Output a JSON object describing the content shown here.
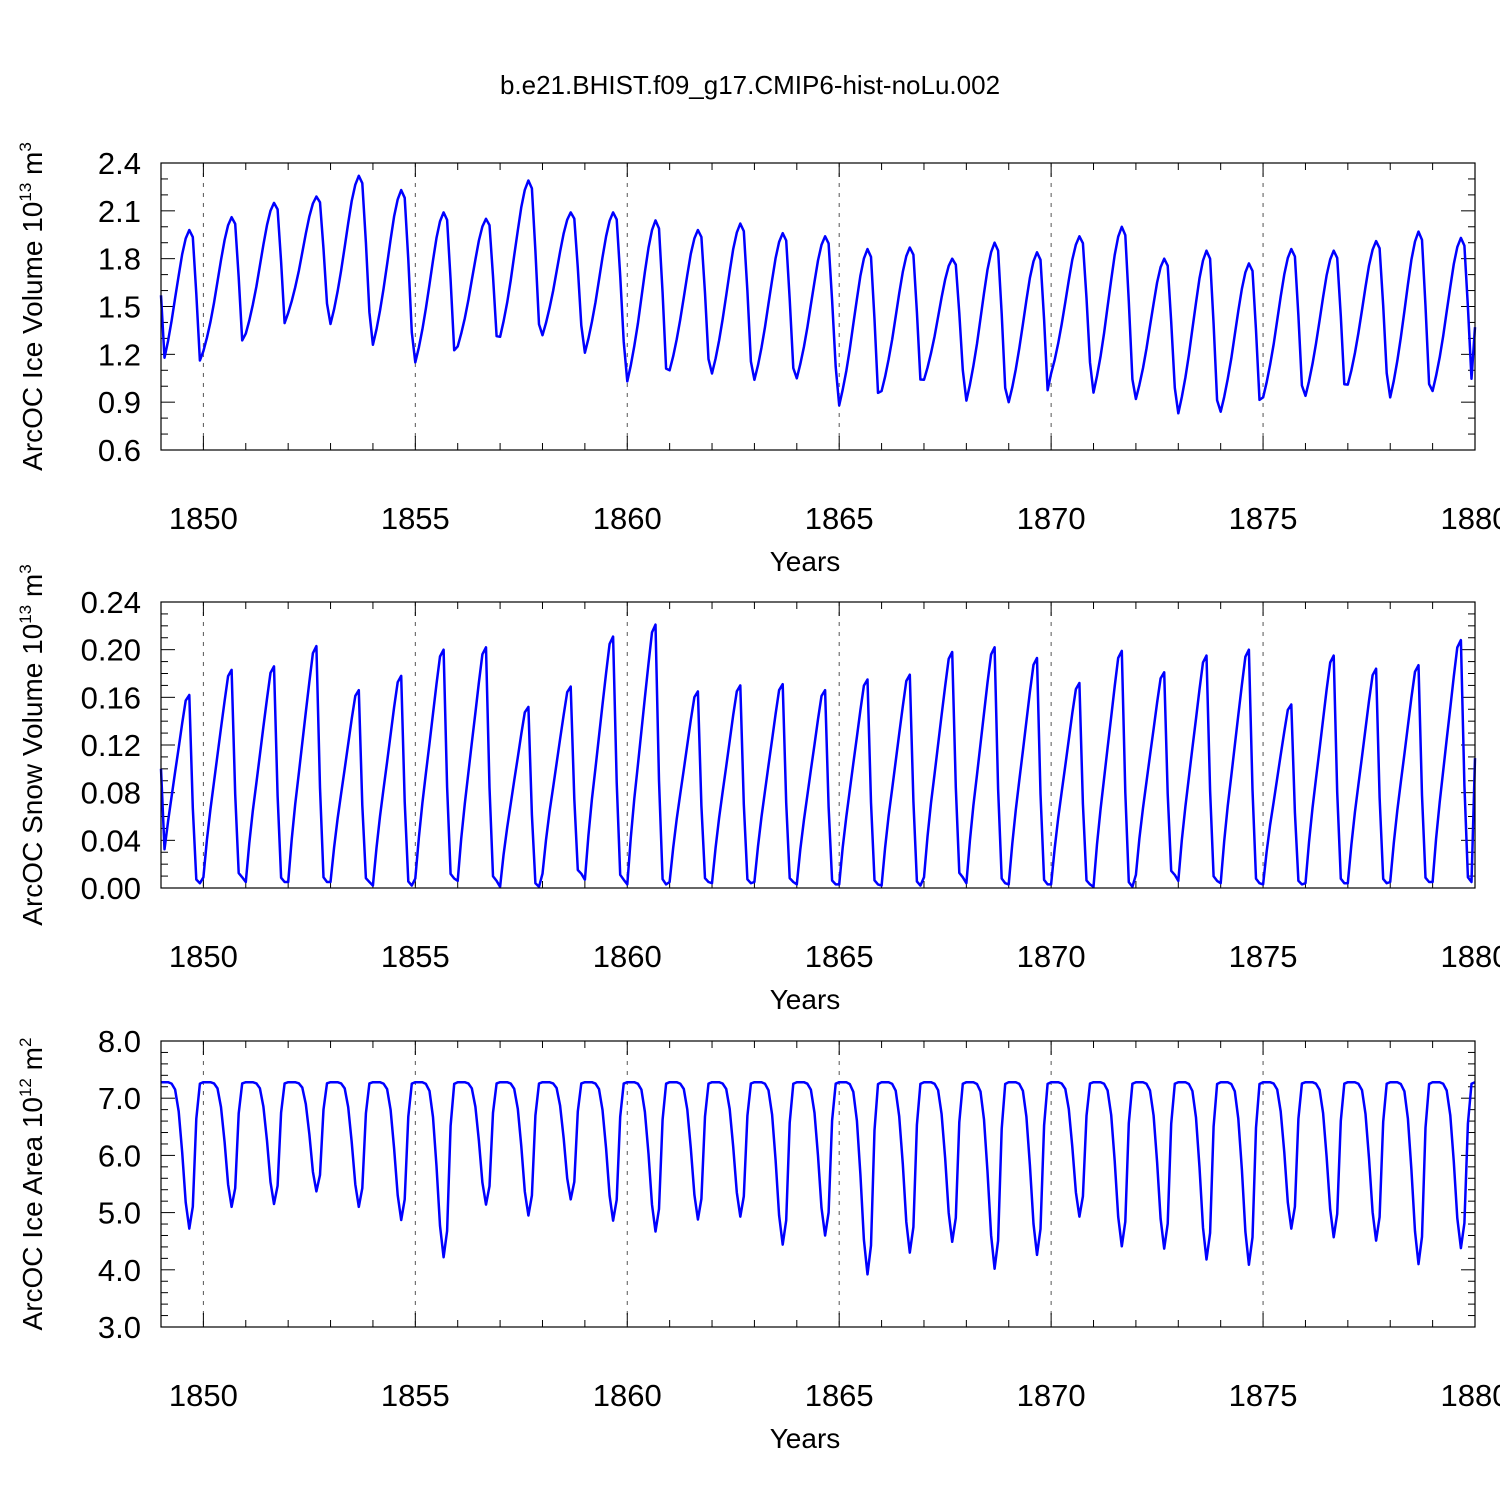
{
  "title": "b.e21.BHIST.f09_g17.CMIP6-hist-noLu.002",
  "colors": {
    "series": "#0000ff",
    "axis": "#000000",
    "grid": "#555555"
  },
  "chart_data": [
    {
      "type": "line",
      "name": "ice-volume",
      "ylabel_prefix": "ArcOC Ice Volume 10",
      "ylabel_exp": "13",
      "ylabel_unit": " m",
      "ylabel_unit_exp": "3",
      "xlabel": "Years",
      "xlim": [
        1849,
        1880
      ],
      "ylim": [
        0.6,
        2.4
      ],
      "xticks": [
        1850,
        1855,
        1860,
        1865,
        1870,
        1875,
        1880
      ],
      "yticks": [
        0.6,
        0.9,
        1.2,
        1.5,
        1.8,
        2.1,
        2.4
      ],
      "ytick_labels": [
        "0.6",
        "0.9",
        "1.2",
        "1.5",
        "1.8",
        "2.1",
        "2.4"
      ],
      "ytick_minor": 0.1,
      "grid": "vertical dashed at major x ticks",
      "series": [
        {
          "name": "Ice Volume",
          "seasonal_shape": [
            0.0,
            0.1,
            0.22,
            0.36,
            0.52,
            0.68,
            0.83,
            0.94,
            1.0,
            0.95,
            0.55,
            0.08
          ],
          "years": [
            1849,
            1850,
            1851,
            1852,
            1853,
            1854,
            1855,
            1856,
            1857,
            1858,
            1859,
            1860,
            1861,
            1862,
            1863,
            1864,
            1865,
            1866,
            1867,
            1868,
            1869,
            1870,
            1871,
            1872,
            1873,
            1874,
            1875,
            1876,
            1877,
            1878,
            1879
          ],
          "annual_max": [
            1.98,
            2.06,
            2.15,
            2.19,
            2.32,
            2.23,
            2.09,
            2.05,
            2.29,
            2.09,
            2.09,
            2.04,
            1.98,
            2.02,
            1.96,
            1.94,
            1.86,
            1.87,
            1.8,
            1.9,
            1.84,
            1.94,
            2.0,
            1.8,
            1.85,
            1.77,
            1.86,
            1.85,
            1.91,
            1.97,
            1.93
          ],
          "annual_min": [
            1.09,
            1.22,
            1.33,
            1.46,
            1.39,
            1.26,
            1.15,
            1.25,
            1.31,
            1.32,
            1.21,
            1.03,
            1.1,
            1.08,
            1.04,
            1.05,
            0.88,
            0.97,
            1.04,
            0.91,
            0.9,
            1.08,
            0.96,
            0.92,
            0.83,
            0.84,
            0.93,
            0.94,
            1.01,
            0.93,
            0.97
          ],
          "start_value": 1.57,
          "end_value": 1.37
        }
      ]
    },
    {
      "type": "line",
      "name": "snow-volume",
      "ylabel_prefix": "ArcOC Snow Volume 10",
      "ylabel_exp": "13",
      "ylabel_unit": " m",
      "ylabel_unit_exp": "3",
      "xlabel": "Years",
      "xlim": [
        1849,
        1880
      ],
      "ylim": [
        0.0,
        0.24
      ],
      "xticks": [
        1850,
        1855,
        1860,
        1865,
        1870,
        1875,
        1880
      ],
      "yticks": [
        0.0,
        0.04,
        0.08,
        0.12,
        0.16,
        0.2,
        0.24
      ],
      "ytick_labels": [
        "0.00",
        "0.04",
        "0.08",
        "0.12",
        "0.16",
        "0.20",
        "0.24"
      ],
      "ytick_minor": 0.01,
      "grid": "vertical dashed at major x ticks",
      "series": [
        {
          "name": "Snow Volume",
          "seasonal_shape": [
            0.0,
            0.18,
            0.33,
            0.46,
            0.59,
            0.72,
            0.85,
            0.97,
            1.0,
            0.4,
            0.02,
            0.0
          ],
          "years": [
            1849,
            1850,
            1851,
            1852,
            1853,
            1854,
            1855,
            1856,
            1857,
            1858,
            1859,
            1860,
            1861,
            1862,
            1863,
            1864,
            1865,
            1866,
            1867,
            1868,
            1869,
            1870,
            1871,
            1872,
            1873,
            1874,
            1875,
            1876,
            1877,
            1878,
            1879
          ],
          "annual_max": [
            0.162,
            0.183,
            0.186,
            0.203,
            0.166,
            0.178,
            0.2,
            0.202,
            0.152,
            0.169,
            0.211,
            0.221,
            0.165,
            0.17,
            0.171,
            0.166,
            0.175,
            0.179,
            0.198,
            0.202,
            0.193,
            0.172,
            0.199,
            0.181,
            0.195,
            0.2,
            0.154,
            0.195,
            0.184,
            0.187,
            0.208
          ],
          "annual_min": [
            0.004,
            0.009,
            0.005,
            0.005,
            0.005,
            0.002,
            0.008,
            0.006,
            0.001,
            0.012,
            0.007,
            0.003,
            0.005,
            0.004,
            0.005,
            0.003,
            0.003,
            0.002,
            0.009,
            0.004,
            0.003,
            0.003,
            0.001,
            0.011,
            0.006,
            0.004,
            0.003,
            0.004,
            0.004,
            0.005,
            0.005
          ],
          "start_value": 0.1,
          "end_value": 0.109
        }
      ]
    },
    {
      "type": "line",
      "name": "ice-area",
      "ylabel_prefix": "ArcOC Ice Area 10",
      "ylabel_exp": "12",
      "ylabel_unit": " m",
      "ylabel_unit_exp": "2",
      "xlabel": "Years",
      "xlim": [
        1849,
        1880
      ],
      "ylim": [
        3.0,
        8.0
      ],
      "xticks": [
        1850,
        1855,
        1860,
        1865,
        1870,
        1875,
        1880
      ],
      "yticks": [
        3.0,
        4.0,
        5.0,
        6.0,
        7.0,
        8.0
      ],
      "ytick_labels": [
        "3.0",
        "4.0",
        "5.0",
        "6.0",
        "7.0",
        "8.0"
      ],
      "ytick_minor": 0.2,
      "grid": "vertical dashed at major x ticks",
      "series": [
        {
          "name": "Ice Area",
          "seasonal_shape": [
            1.0,
            1.0,
            1.0,
            0.99,
            0.95,
            0.8,
            0.52,
            0.18,
            0.0,
            0.15,
            0.75,
            0.99
          ],
          "years": [
            1849,
            1850,
            1851,
            1852,
            1853,
            1854,
            1855,
            1856,
            1857,
            1858,
            1859,
            1860,
            1861,
            1862,
            1863,
            1864,
            1865,
            1866,
            1867,
            1868,
            1869,
            1870,
            1871,
            1872,
            1873,
            1874,
            1875,
            1876,
            1877,
            1878,
            1879
          ],
          "annual_max": [
            7.28,
            7.28,
            7.28,
            7.28,
            7.28,
            7.28,
            7.28,
            7.28,
            7.28,
            7.28,
            7.28,
            7.28,
            7.28,
            7.28,
            7.28,
            7.28,
            7.28,
            7.28,
            7.28,
            7.28,
            7.28,
            7.28,
            7.28,
            7.28,
            7.28,
            7.28,
            7.28,
            7.28,
            7.28,
            7.28,
            7.28
          ],
          "annual_min": [
            4.72,
            5.1,
            5.15,
            5.37,
            5.1,
            4.87,
            4.22,
            5.14,
            4.95,
            5.23,
            4.86,
            4.67,
            4.88,
            4.93,
            4.44,
            4.6,
            3.92,
            4.3,
            4.49,
            4.02,
            4.26,
            4.93,
            4.41,
            4.37,
            4.18,
            4.09,
            4.72,
            4.57,
            4.51,
            4.1,
            4.38
          ],
          "start_value": 7.28,
          "end_value": 7.28
        }
      ]
    }
  ]
}
